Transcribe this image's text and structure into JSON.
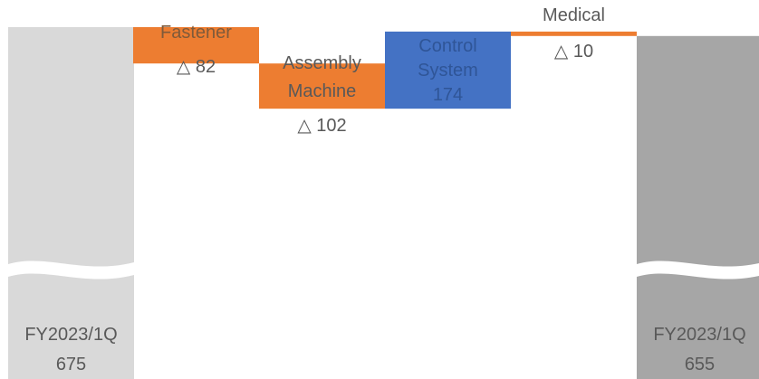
{
  "chart_data": {
    "type": "waterfall",
    "axis_break": true,
    "colors": {
      "start": "#d9d9d9",
      "end": "#a6a6a6",
      "decrease": "#ed7d31",
      "increase": "#4472c4",
      "light_text": "#2f5597",
      "dark_text": "#595959"
    },
    "bars": [
      {
        "name": "start-bar",
        "label_lines": [
          "FY2023/1Q"
        ],
        "value_text": "675",
        "value": 675,
        "kind": "total"
      },
      {
        "name": "fastener-bar",
        "label_lines": [
          "Fastener"
        ],
        "value_text": "△ 82",
        "value": -82,
        "kind": "decrease"
      },
      {
        "name": "assembly-bar",
        "label_lines": [
          "Assembly",
          "Machine"
        ],
        "value_text": "△ 102",
        "value": -102,
        "kind": "decrease"
      },
      {
        "name": "control-bar",
        "label_lines": [
          "Control",
          "System"
        ],
        "value_text": "174",
        "value": 174,
        "kind": "increase"
      },
      {
        "name": "medical-bar",
        "label_lines": [
          "Medical"
        ],
        "value_text": "△ 10",
        "value": -10,
        "kind": "decrease"
      },
      {
        "name": "end-bar",
        "label_lines": [
          "FY2023/1Q"
        ],
        "value_text": "655",
        "value": 655,
        "kind": "total"
      }
    ]
  }
}
